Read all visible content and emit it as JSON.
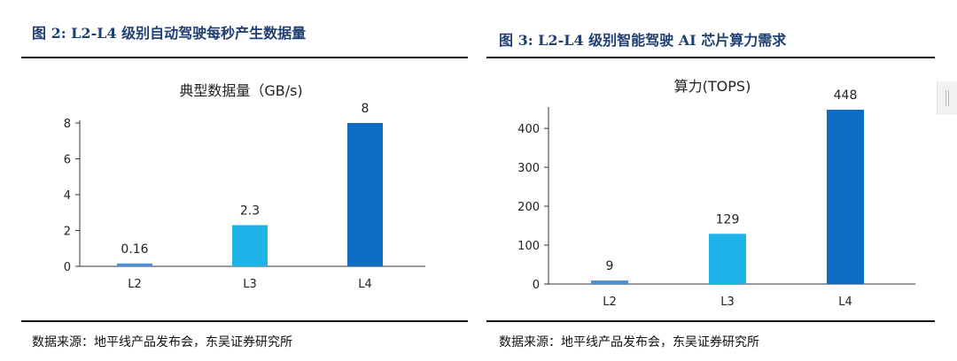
{
  "figures": [
    {
      "title": "图 2:  L2-L4 级别自动驾驶每秒产生数据量",
      "source": "数据来源：地平线产品发布会，东吴证券研究所"
    },
    {
      "title": "图 3:  L2-L4 级别智能驾驶 AI 芯片算力需求",
      "source": "数据来源：地平线产品发布会，东吴证券研究所"
    }
  ],
  "chart_data": [
    {
      "type": "bar",
      "title": "典型数据量（GB/s)",
      "categories": [
        "L2",
        "L3",
        "L4"
      ],
      "values": [
        0.16,
        2.3,
        8
      ],
      "data_labels": [
        "0.16",
        "2.3",
        "8"
      ],
      "bar_colors": [
        "#4a90d9",
        "#1eb4ea",
        "#0f6cc4"
      ],
      "ylim": [
        0,
        8
      ],
      "yticks": [
        "0",
        "2",
        "4",
        "6",
        "8"
      ],
      "grid": false,
      "legend": "none"
    },
    {
      "type": "bar",
      "title": "算力(TOPS)",
      "categories": [
        "L2",
        "L3",
        "L4"
      ],
      "values": [
        9,
        129,
        448
      ],
      "data_labels": [
        "9",
        "129",
        "448"
      ],
      "bar_colors": [
        "#4a90d9",
        "#1eb4ea",
        "#0f6cc4"
      ],
      "ylim": [
        0,
        448
      ],
      "yticks": [
        "0",
        "100",
        "200",
        "300",
        "400"
      ],
      "grid": false,
      "legend": "none"
    }
  ]
}
